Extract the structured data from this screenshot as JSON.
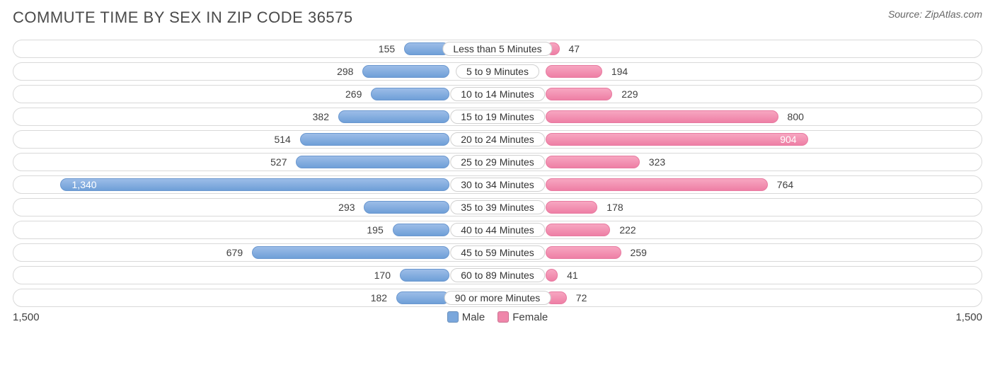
{
  "title": "COMMUTE TIME BY SEX IN ZIP CODE 36575",
  "source_label": "Source:",
  "source_value": "ZipAtlas.com",
  "chart": {
    "type": "diverging-bar",
    "axis_max": 1500,
    "axis_left_label": "1,500",
    "axis_right_label": "1,500",
    "background_color": "#ffffff",
    "row_border_color": "#d9d9d9",
    "male_color": "#7aa7dc",
    "female_color": "#ef86aa",
    "text_color": "#404040",
    "value_fontsize": 14,
    "category_fontsize": 14,
    "title_fontsize": 22,
    "title_color": "#4a4a4a",
    "legend": {
      "male_label": "Male",
      "female_label": "Female"
    },
    "rows": [
      {
        "category": "Less than 5 Minutes",
        "male": 155,
        "male_label": "155",
        "female": 47,
        "female_label": "47"
      },
      {
        "category": "5 to 9 Minutes",
        "male": 298,
        "male_label": "298",
        "female": 194,
        "female_label": "194"
      },
      {
        "category": "10 to 14 Minutes",
        "male": 269,
        "male_label": "269",
        "female": 229,
        "female_label": "229"
      },
      {
        "category": "15 to 19 Minutes",
        "male": 382,
        "male_label": "382",
        "female": 800,
        "female_label": "800"
      },
      {
        "category": "20 to 24 Minutes",
        "male": 514,
        "male_label": "514",
        "female": 904,
        "female_label": "904"
      },
      {
        "category": "25 to 29 Minutes",
        "male": 527,
        "male_label": "527",
        "female": 323,
        "female_label": "323"
      },
      {
        "category": "30 to 34 Minutes",
        "male": 1340,
        "male_label": "1,340",
        "female": 764,
        "female_label": "764"
      },
      {
        "category": "35 to 39 Minutes",
        "male": 293,
        "male_label": "293",
        "female": 178,
        "female_label": "178"
      },
      {
        "category": "40 to 44 Minutes",
        "male": 195,
        "male_label": "195",
        "female": 222,
        "female_label": "222"
      },
      {
        "category": "45 to 59 Minutes",
        "male": 679,
        "male_label": "679",
        "female": 259,
        "female_label": "259"
      },
      {
        "category": "60 to 89 Minutes",
        "male": 170,
        "male_label": "170",
        "female": 41,
        "female_label": "41"
      },
      {
        "category": "90 or more Minutes",
        "male": 182,
        "male_label": "182",
        "female": 72,
        "female_label": "72"
      }
    ]
  }
}
